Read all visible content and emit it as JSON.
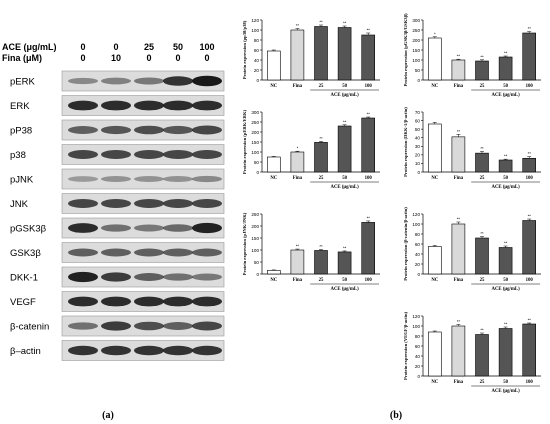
{
  "panel_a": {
    "label": "(a)",
    "treatment_rows": [
      {
        "name": "ACE (μg/mL)",
        "values": [
          "0",
          "0",
          "25",
          "50",
          "100"
        ]
      },
      {
        "name": "Fina (μM)",
        "values": [
          "0",
          "10",
          "0",
          "0",
          "0"
        ]
      }
    ],
    "bands": [
      {
        "name": "pERK",
        "intensity": [
          0.3,
          0.35,
          0.4,
          0.8,
          0.95
        ]
      },
      {
        "name": "ERK",
        "intensity": [
          0.85,
          0.85,
          0.85,
          0.85,
          0.85
        ]
      },
      {
        "name": "pP38",
        "intensity": [
          0.55,
          0.6,
          0.65,
          0.6,
          0.7
        ]
      },
      {
        "name": "p38",
        "intensity": [
          0.7,
          0.7,
          0.7,
          0.7,
          0.7
        ]
      },
      {
        "name": "pJNK",
        "intensity": [
          0.2,
          0.25,
          0.25,
          0.25,
          0.3
        ]
      },
      {
        "name": "JNK",
        "intensity": [
          0.7,
          0.7,
          0.7,
          0.7,
          0.7
        ]
      },
      {
        "name": "pGSK3β",
        "intensity": [
          0.85,
          0.45,
          0.4,
          0.5,
          0.9
        ]
      },
      {
        "name": "GSK3β",
        "intensity": [
          0.55,
          0.55,
          0.55,
          0.55,
          0.55
        ]
      },
      {
        "name": "DKK-1",
        "intensity": [
          0.9,
          0.75,
          0.55,
          0.45,
          0.4
        ]
      },
      {
        "name": "VEGF",
        "intensity": [
          0.85,
          0.85,
          0.85,
          0.85,
          0.85
        ]
      },
      {
        "name": "β-catenin",
        "intensity": [
          0.45,
          0.75,
          0.65,
          0.55,
          0.7
        ]
      },
      {
        "name": "β–actin",
        "intensity": [
          0.8,
          0.8,
          0.8,
          0.8,
          0.8
        ]
      }
    ]
  },
  "panel_b": {
    "label": "(b)"
  },
  "chart_data": [
    {
      "type": "bar",
      "ylabel": "Protein expression (pp38/p38)",
      "categories": [
        "NC",
        "Fina",
        "25",
        "50",
        "100"
      ],
      "group_label": "ACE (μg/mL)",
      "values": [
        58,
        100,
        107,
        105,
        90
      ],
      "errors": [
        2,
        3,
        3,
        3,
        4
      ],
      "ylim": [
        0,
        120
      ],
      "yticks": [
        0,
        20,
        40,
        60,
        80,
        100,
        120
      ],
      "sig": [
        "",
        "**",
        "**",
        "**",
        "**"
      ]
    },
    {
      "type": "bar",
      "ylabel": "Protein expression (pGSK3β/GSK3β)",
      "categories": [
        "NC",
        "Fina",
        "25",
        "50",
        "100"
      ],
      "group_label": "ACE (μg/mL)",
      "values": [
        210,
        100,
        95,
        115,
        235
      ],
      "errors": [
        6,
        4,
        6,
        5,
        7
      ],
      "ylim": [
        0,
        300
      ],
      "yticks": [
        0,
        50,
        100,
        150,
        200,
        250,
        300
      ],
      "sig": [
        "*",
        "**",
        "**",
        "**",
        "**"
      ]
    },
    {
      "type": "bar",
      "ylabel": "Protein expression (pERK/ERK)",
      "categories": [
        "NC",
        "Fina",
        "25",
        "50",
        "100"
      ],
      "group_label": "ACE (μg/mL)",
      "values": [
        75,
        100,
        148,
        230,
        270
      ],
      "errors": [
        3,
        4,
        5,
        6,
        5
      ],
      "ylim": [
        0,
        300
      ],
      "yticks": [
        0,
        50,
        100,
        150,
        200,
        250,
        300
      ],
      "sig": [
        "",
        "*",
        "**",
        "**",
        "**"
      ]
    },
    {
      "type": "bar",
      "ylabel": "Protein expression (DKK-1/β-actin)",
      "categories": [
        "NC",
        "Fina",
        "25",
        "50",
        "100"
      ],
      "group_label": "ACE (μg/mL)",
      "values": [
        56,
        41,
        22,
        14,
        16
      ],
      "errors": [
        2,
        3,
        2,
        1,
        2
      ],
      "ylim": [
        0,
        70
      ],
      "yticks": [
        0,
        10,
        20,
        30,
        40,
        50,
        60,
        70
      ],
      "sig": [
        "",
        "**",
        "**",
        "**",
        "**"
      ]
    },
    {
      "type": "bar",
      "ylabel": "Protein expression (pJNK/JNK)",
      "categories": [
        "NC",
        "Fina",
        "25",
        "50",
        "100"
      ],
      "group_label": "ACE (μg/mL)",
      "values": [
        15,
        100,
        98,
        92,
        215
      ],
      "errors": [
        2,
        4,
        4,
        4,
        6
      ],
      "ylim": [
        0,
        250
      ],
      "yticks": [
        0,
        50,
        100,
        150,
        200,
        250
      ],
      "sig": [
        "",
        "**",
        "**",
        "**",
        "**"
      ]
    },
    {
      "type": "bar",
      "ylabel": "Protein expression (β-catenin/β-actin)",
      "categories": [
        "NC",
        "Fina",
        "25",
        "50",
        "100"
      ],
      "group_label": "ACE (μg/mL)",
      "values": [
        55,
        100,
        72,
        53,
        107
      ],
      "errors": [
        2,
        4,
        3,
        3,
        3
      ],
      "ylim": [
        0,
        120
      ],
      "yticks": [
        0,
        20,
        40,
        60,
        80,
        100,
        120
      ],
      "sig": [
        "",
        "**",
        "**",
        "**",
        "**"
      ]
    },
    {
      "type": "bar",
      "ylabel": "Protein expression (VEGF/β-actin)",
      "categories": [
        "NC",
        "Fina",
        "25",
        "50",
        "100"
      ],
      "group_label": "ACE (μg/mL)",
      "values": [
        88,
        100,
        83,
        95,
        104
      ],
      "errors": [
        2,
        3,
        3,
        3,
        2
      ],
      "ylim": [
        0,
        120
      ],
      "yticks": [
        0,
        20,
        40,
        60,
        80,
        100,
        120
      ],
      "sig": [
        "",
        "**",
        "**",
        "**",
        "**"
      ]
    }
  ],
  "colors": {
    "nc_fill": "#ffffff",
    "fina_fill": "#d9d9d9",
    "ace_fill": "#555555",
    "stroke": "#000000",
    "blot_bg": "#dcdcdc",
    "band": "#111111"
  }
}
